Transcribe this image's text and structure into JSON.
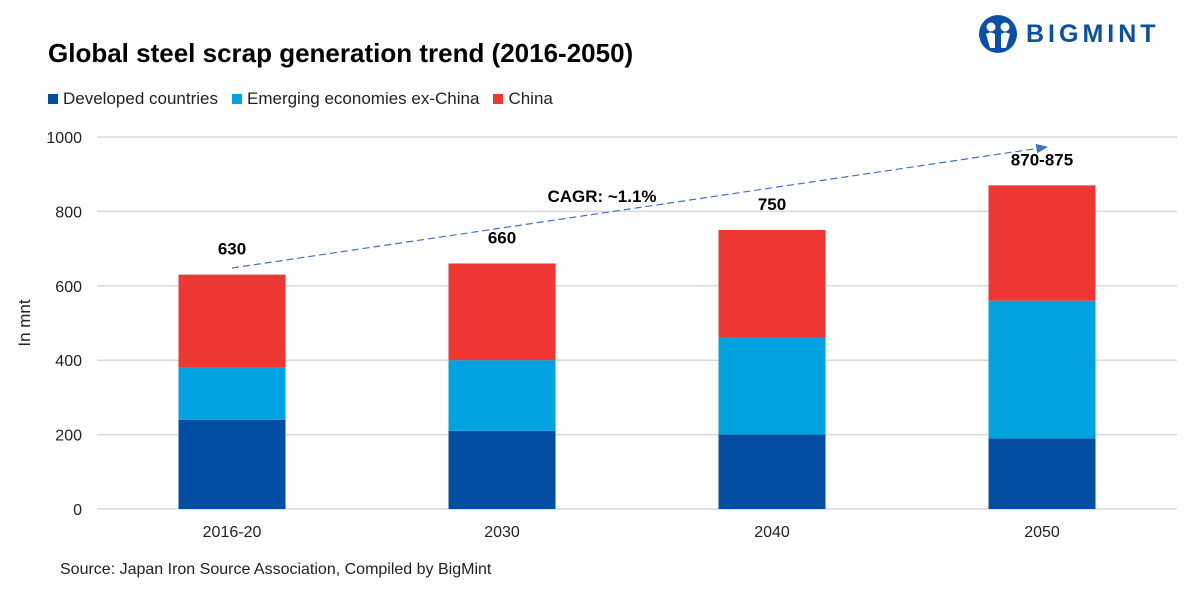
{
  "logo": {
    "text": "BIGMINT"
  },
  "chart_data": {
    "type": "bar",
    "stacked": true,
    "title": "Global steel scrap generation trend (2016-2050)",
    "ylabel": "In mnt",
    "xlabel": "",
    "ylim": [
      0,
      1000
    ],
    "yticks": [
      0,
      200,
      400,
      600,
      800,
      1000
    ],
    "grid": true,
    "legend_position": "top-left",
    "categories": [
      "2016-20",
      "2030",
      "2040",
      "2050"
    ],
    "series": [
      {
        "name": "Developed countries",
        "color": "#034ea2",
        "values": [
          240,
          210,
          200,
          190
        ]
      },
      {
        "name": "Emerging economies ex-China",
        "color": "#00a3e0",
        "values": [
          140,
          190,
          260,
          370
        ]
      },
      {
        "name": "China",
        "color": "#ee3733",
        "values": [
          250,
          260,
          290,
          310
        ]
      }
    ],
    "total_labels": [
      "630",
      "660",
      "750",
      "870-875"
    ],
    "annotation": {
      "text": "CAGR: ~1.1%",
      "arrow_color": "#4472c4"
    },
    "source": "Source: Japan Iron Source Association, Compiled by BigMint"
  }
}
